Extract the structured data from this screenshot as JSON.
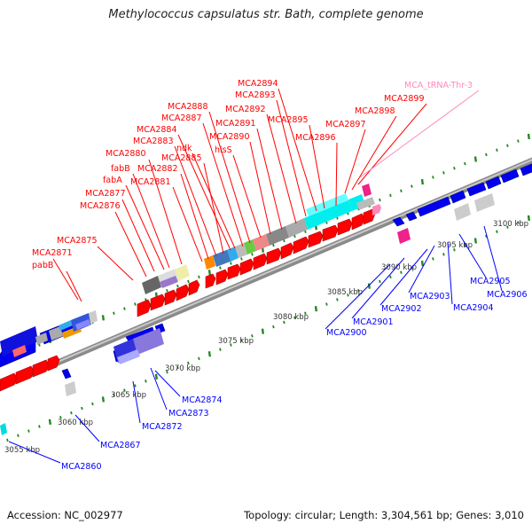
{
  "title": "Methylococcus capsulatus str. Bath, complete genome",
  "footer": {
    "accession": "Accession: NC_002977",
    "summary": "Topology: circular; Length: 3,304,561 bp; Genes: 3,010"
  },
  "colors": {
    "forward_gene": "#ff0000",
    "reverse_gene": "#0000ff",
    "trna": "#ff88bb",
    "backbone": "#999999",
    "tick": "#228822",
    "scale_label": "#333333"
  },
  "scale_labels": [
    "3055 kbp",
    "3060 kbp",
    "3065 kbp",
    "3070 kbp",
    "3075 kbp",
    "3080 kbp",
    "3085 kbp",
    "3090 kbp",
    "3095 kbp",
    "3100 kbp"
  ],
  "gene_labels_forward": [
    "pabB",
    "MCA2871",
    "MCA2875",
    "MCA2876",
    "MCA2877",
    "fabA",
    "fabB",
    "MCA2880",
    "MCA2881",
    "MCA2882",
    "MCA2883",
    "MCA2885",
    "MCA2884",
    "ndk",
    "MCA2887",
    "MCA2888",
    "hisS",
    "MCA2890",
    "MCA2891",
    "MCA2892",
    "MCA2893",
    "MCA2894",
    "MCA2895",
    "MCA2896",
    "MCA2897",
    "MCA2898",
    "MCA2899"
  ],
  "trna_labels": [
    "MCA_tRNA-Thr-3"
  ],
  "gene_labels_reverse": [
    "MCA2860",
    "MCA2867",
    "MCA2872",
    "MCA2873",
    "MCA2874",
    "MCA2900",
    "MCA2901",
    "MCA2902",
    "MCA2903",
    "MCA2904",
    "MCA2905",
    "MCA2906"
  ]
}
